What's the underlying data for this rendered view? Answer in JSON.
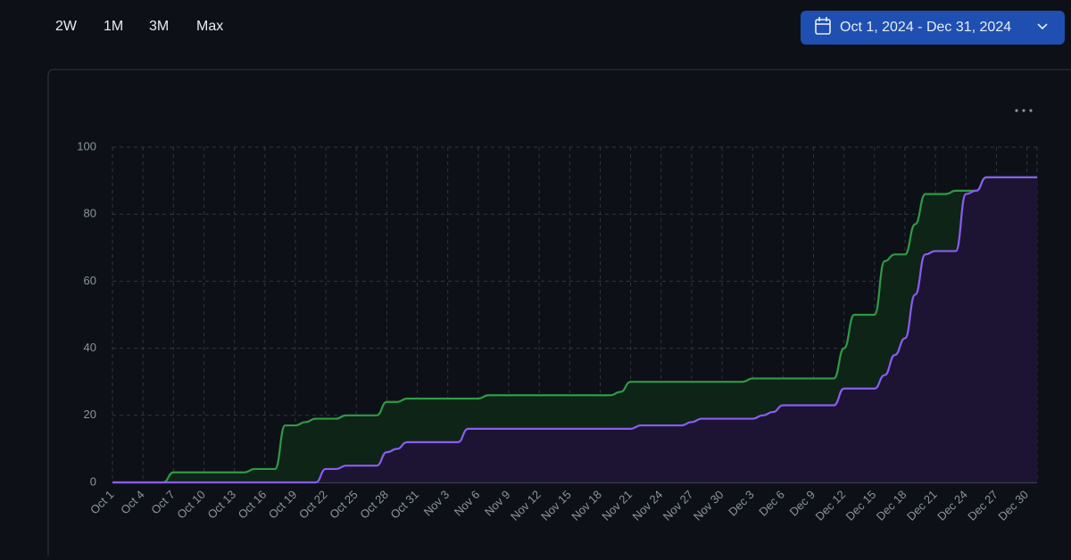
{
  "toolbar": {
    "ranges": [
      "2W",
      "1M",
      "3M",
      "Max"
    ],
    "date_range": "Oct 1, 2024 - Dec 31, 2024"
  },
  "chart_data": {
    "type": "area",
    "categories": [
      "Oct 1",
      null,
      null,
      "Oct 4",
      null,
      null,
      "Oct 7",
      null,
      null,
      "Oct 10",
      null,
      null,
      "Oct 13",
      null,
      null,
      "Oct 16",
      null,
      null,
      "Oct 19",
      null,
      null,
      "Oct 22",
      null,
      null,
      "Oct 25",
      null,
      null,
      "Oct 28",
      null,
      null,
      "Oct 31",
      null,
      null,
      "Nov 3",
      null,
      null,
      "Nov 6",
      null,
      null,
      "Nov 9",
      null,
      null,
      "Nov 12",
      null,
      null,
      "Nov 15",
      null,
      null,
      "Nov 18",
      null,
      null,
      "Nov 21",
      null,
      null,
      "Nov 24",
      null,
      null,
      "Nov 27",
      null,
      null,
      "Nov 30",
      null,
      null,
      "Dec 3",
      null,
      null,
      "Dec 6",
      null,
      null,
      "Dec 9",
      null,
      null,
      "Dec 12",
      null,
      null,
      "Dec 15",
      null,
      null,
      "Dec 18",
      null,
      null,
      "Dec 21",
      null,
      null,
      "Dec 24",
      null,
      null,
      "Dec 27",
      null,
      null,
      "Dec 30",
      null
    ],
    "series": [
      {
        "color": "#2f9a45",
        "fill": "#0e2416",
        "values": [
          0,
          0,
          0,
          0,
          0,
          0,
          3,
          3,
          3,
          3,
          3,
          3,
          3,
          3,
          4,
          4,
          4,
          17,
          17,
          18,
          19,
          19,
          19,
          20,
          20,
          20,
          20,
          24,
          24,
          25,
          25,
          25,
          25,
          25,
          25,
          25,
          25,
          26,
          26,
          26,
          26,
          26,
          26,
          26,
          26,
          26,
          26,
          26,
          26,
          26,
          27,
          30,
          30,
          30,
          30,
          30,
          30,
          30,
          30,
          30,
          30,
          30,
          30,
          31,
          31,
          31,
          31,
          31,
          31,
          31,
          31,
          31,
          40,
          50,
          50,
          50,
          66,
          68,
          68,
          77,
          86,
          86,
          86,
          87,
          87,
          87,
          91,
          91,
          91,
          91,
          91,
          91
        ]
      },
      {
        "color": "#8b5cf0",
        "fill": "#1d1434",
        "values": [
          0,
          0,
          0,
          0,
          0,
          0,
          0,
          0,
          0,
          0,
          0,
          0,
          0,
          0,
          0,
          0,
          0,
          0,
          0,
          0,
          0,
          4,
          4,
          5,
          5,
          5,
          5,
          9,
          10,
          12,
          12,
          12,
          12,
          12,
          12,
          16,
          16,
          16,
          16,
          16,
          16,
          16,
          16,
          16,
          16,
          16,
          16,
          16,
          16,
          16,
          16,
          16,
          17,
          17,
          17,
          17,
          17,
          18,
          19,
          19,
          19,
          19,
          19,
          19,
          20,
          21,
          23,
          23,
          23,
          23,
          23,
          23,
          28,
          28,
          28,
          28,
          32,
          38,
          43,
          56,
          68,
          69,
          69,
          69,
          86,
          87,
          91,
          91,
          91,
          91,
          91,
          91
        ]
      }
    ],
    "ylim": [
      0,
      100
    ],
    "yticks": [
      0,
      20,
      40,
      60,
      80,
      100
    ],
    "grid": true
  }
}
